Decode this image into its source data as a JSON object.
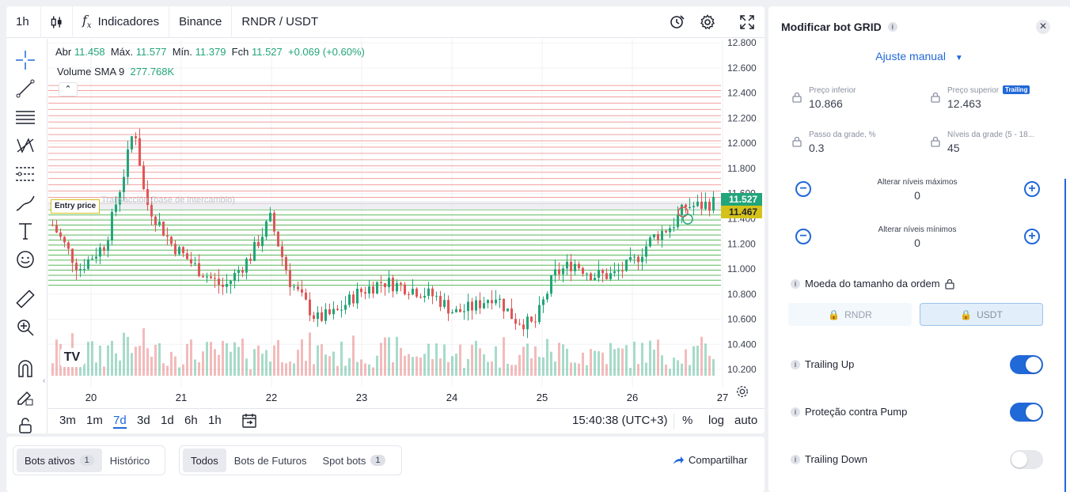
{
  "toolbar": {
    "interval": "1h",
    "indicators_label": "Indicadores",
    "exchange": "Binance",
    "symbol": "RNDR / USDT"
  },
  "legend": {
    "open_label": "Abr",
    "open": "11.458",
    "high_label": "Máx.",
    "high": "11.577",
    "low_label": "Mín.",
    "low": "11.379",
    "close_label": "Fch",
    "close": "11.527",
    "change": "+0.069 (+0.60%)",
    "volume_label": "Volume SMA 9",
    "volume_value": "277.768K"
  },
  "chart_data": {
    "type": "candlestick",
    "y_ticks": [
      "12.800",
      "12.600",
      "12.400",
      "12.200",
      "12.000",
      "11.800",
      "11.600",
      "11.400",
      "11.200",
      "11.000",
      "10.800",
      "10.600",
      "10.400",
      "10.200"
    ],
    "ylim": [
      10.15,
      12.82
    ],
    "x_ticks": [
      "20",
      "21",
      "22",
      "23",
      "24",
      "25",
      "26",
      "27"
    ],
    "price_tag_last": "11.527",
    "price_tag_entry": "11.467",
    "entry_label": "Entry price",
    "faded_label": "Transacción (base de intercambio)",
    "grid_lines_upper": [
      11.52,
      11.57,
      11.62,
      11.67,
      11.72,
      11.77,
      11.82,
      11.87,
      11.92,
      11.97,
      12.02,
      12.07,
      12.12,
      12.17,
      12.22,
      12.27,
      12.32,
      12.37,
      12.42,
      12.46
    ],
    "grid_lines_lower": [
      10.87,
      10.91,
      10.95,
      10.99,
      11.03,
      11.07,
      11.11,
      11.15,
      11.19,
      11.23,
      11.27,
      11.31,
      11.35,
      11.39,
      11.43,
      11.47
    ],
    "colors": {
      "up": "#22a57a",
      "down": "#e05656",
      "upper_grid": "#f2a0a0",
      "lower_grid": "#5cb85c",
      "last_tag": "#22a57a",
      "entry_tag": "#d4c21a"
    },
    "timeframes": [
      "3m",
      "1m",
      "7d",
      "3d",
      "1d",
      "6h",
      "1h"
    ],
    "selected_timeframe": "7d",
    "clock": "15:40:38 (UTC+3)",
    "scale_options": [
      "%",
      "log",
      "auto"
    ]
  },
  "bottom": {
    "tabs1": [
      {
        "label": "Bots ativos",
        "count": "1"
      },
      {
        "label": "Histórico"
      }
    ],
    "tabs2": [
      {
        "label": "Todos"
      },
      {
        "label": "Bots de Futuros"
      },
      {
        "label": "Spot bots",
        "count": "1"
      }
    ],
    "share_label": "Compartilhar"
  },
  "panel": {
    "title": "Modificar bot GRID",
    "mode": "Ajuste manual",
    "lower_price_label": "Preço inferior",
    "lower_price": "10.866",
    "upper_price_label": "Preço superior",
    "upper_price": "12.463",
    "trailing_badge": "Trailing",
    "grid_step_label": "Passo da grade, %",
    "grid_step": "0.3",
    "grid_levels_label": "Níveis da grade (5 - 18...",
    "grid_levels": "45",
    "max_levels_label": "Alterar níveis máximos",
    "max_levels": "0",
    "min_levels_label": "Alterar níveis mínimos",
    "min_levels": "0",
    "order_currency_label": "Moeda do tamanho da ordem",
    "currency_a": "RNDR",
    "currency_b": "USDT",
    "trailing_up_label": "Trailing Up",
    "trailing_up": true,
    "pump_label": "Proteção contra Pump",
    "pump": true,
    "trailing_down_label": "Trailing Down",
    "trailing_down": false
  }
}
